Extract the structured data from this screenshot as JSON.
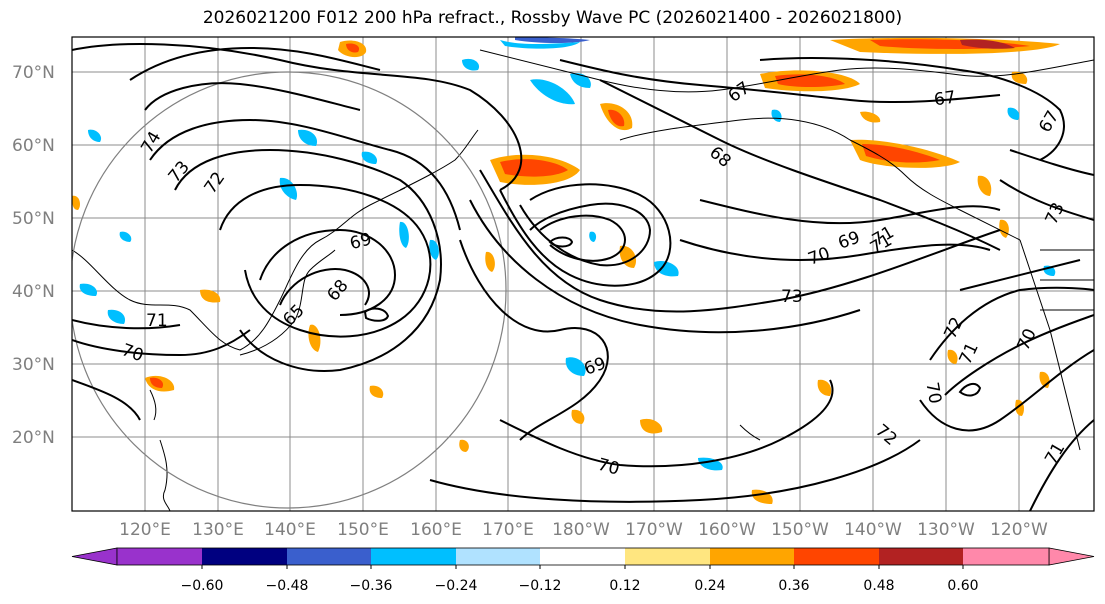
{
  "title": "2026021200 F012 200 hPa refract., Rossby Wave PC (2026021400 - 2026021800)",
  "lat_labels": [
    "20°N",
    "30°N",
    "40°N",
    "50°N",
    "60°N",
    "70°N"
  ],
  "lon_labels": [
    "120°E",
    "130°E",
    "140°E",
    "150°E",
    "160°E",
    "170°E",
    "180°W",
    "170°W",
    "160°W",
    "150°W",
    "140°W",
    "130°W",
    "120°W"
  ],
  "contour_labels": [
    "74",
    "73",
    "72",
    "69",
    "68",
    "65",
    "71",
    "70",
    "67",
    "67",
    "67",
    "68",
    "69",
    "70",
    "71",
    "73",
    "69",
    "70",
    "72",
    "71",
    "72",
    "71",
    "70",
    "73",
    "71",
    "70"
  ],
  "colorbar": {
    "ticks": [
      "−0.60",
      "−0.48",
      "−0.36",
      "−0.24",
      "−0.12",
      "0.12",
      "0.24",
      "0.36",
      "0.48",
      "0.60"
    ],
    "colors": [
      "#9932cc",
      "#000080",
      "#3a5fcd",
      "#00bfff",
      "#b0e2ff",
      "#ffffff",
      "#ffe680",
      "#ffa500",
      "#ff4500",
      "#b22222",
      "#ff88aa"
    ]
  },
  "colors": {
    "contour": "#000000",
    "grid": "#8c8c8c",
    "circle": "#808080",
    "axis_label": "#7f7f7f"
  }
}
